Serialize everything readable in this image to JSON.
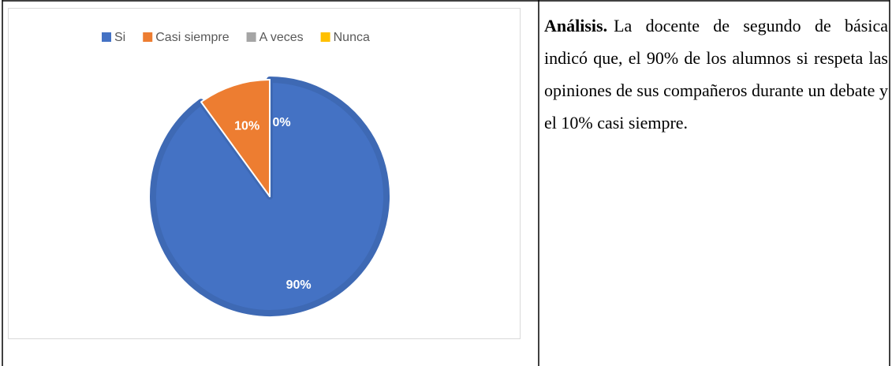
{
  "chart_data": {
    "type": "pie",
    "categories": [
      "Si",
      "Casi siempre",
      "A veces",
      "Nunca"
    ],
    "values": [
      90,
      10,
      0,
      0
    ],
    "value_labels": [
      "90%",
      "10%",
      "0%",
      null
    ],
    "colors": [
      "#4472c4",
      "#ed7d31",
      "#a5a5a5",
      "#ffc000"
    ],
    "legend": "top"
  },
  "analysis": {
    "heading": "Análisis.",
    "body": "La docente de segundo de básica indicó que, el 90% de los alumnos si respeta las opiniones de sus compañeros durante un debate y el 10% casi siempre."
  }
}
